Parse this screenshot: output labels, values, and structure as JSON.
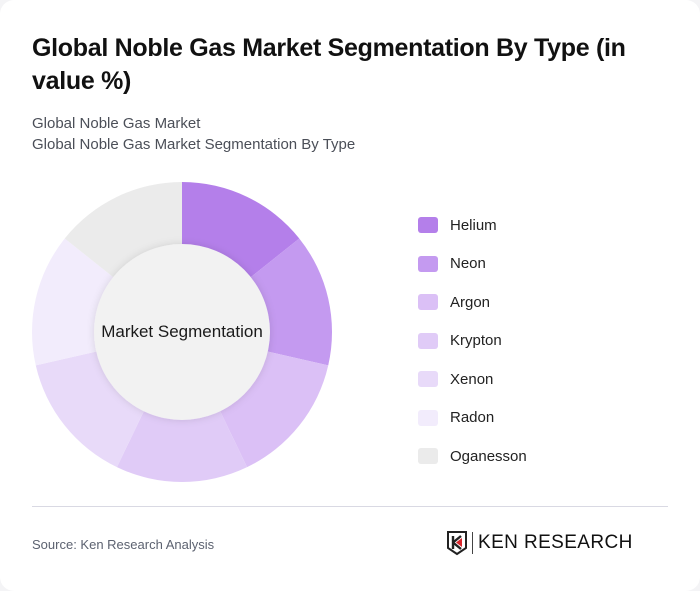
{
  "header": {
    "title": "Global Noble Gas Market Segmentation By Type (in value %)",
    "subtitle_lines": [
      "Global Noble Gas Market",
      "Global Noble Gas Market Segmentation By Type"
    ]
  },
  "chart_data": {
    "type": "pie",
    "variant": "donut",
    "title": "Global Noble Gas Market Segmentation By Type (in value %)",
    "center_label": "Market Segmentation",
    "categories": [
      "Helium",
      "Neon",
      "Argon",
      "Krypton",
      "Xenon",
      "Radon",
      "Oganesson"
    ],
    "values": [
      14.29,
      14.29,
      14.29,
      14.29,
      14.29,
      14.29,
      14.29
    ],
    "colors": [
      "#b47fea",
      "#c49af0",
      "#dbc0f6",
      "#e0cbf7",
      "#e8daf9",
      "#f2ecfc",
      "#ebebeb"
    ],
    "legend_position": "right",
    "start_angle_deg": 0,
    "direction": "clockwise"
  },
  "legend": {
    "items": [
      {
        "label": "Helium",
        "color": "#b47fea"
      },
      {
        "label": "Neon",
        "color": "#c49af0"
      },
      {
        "label": "Argon",
        "color": "#dbc0f6"
      },
      {
        "label": "Krypton",
        "color": "#e0cbf7"
      },
      {
        "label": "Xenon",
        "color": "#e8daf9"
      },
      {
        "label": "Radon",
        "color": "#f2ecfc"
      },
      {
        "label": "Oganesson",
        "color": "#ebebeb"
      }
    ]
  },
  "footer": {
    "source": "Source: Ken Research Analysis",
    "logo_text": "KEN RESEARCH"
  }
}
